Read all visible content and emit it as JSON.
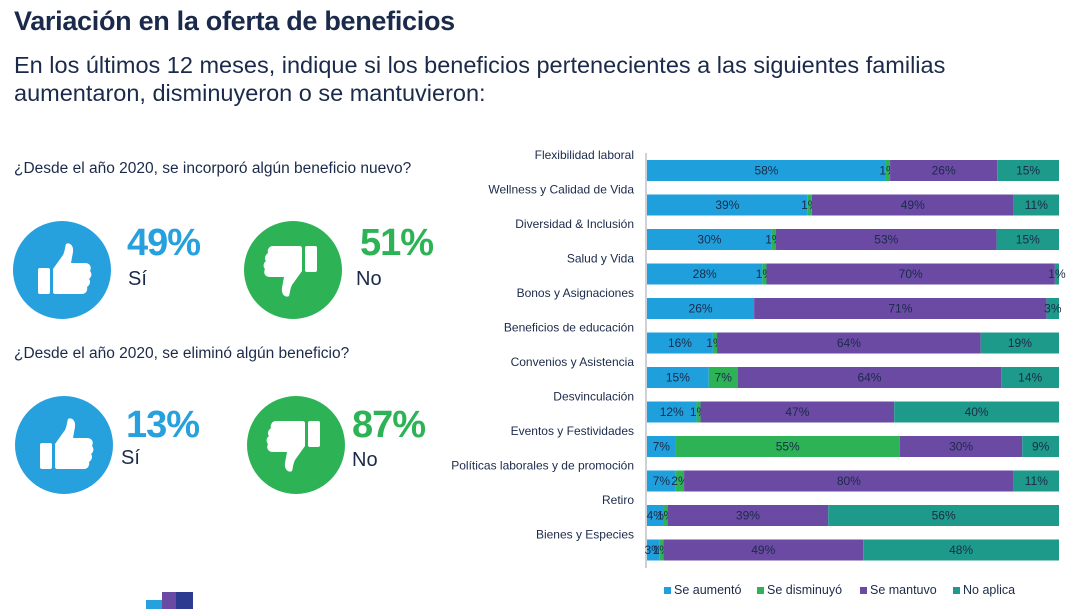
{
  "header": {
    "title": "Variación en la oferta de beneficios",
    "subtitle": "En los últimos 12 meses, indique si los beneficios pertenecientes a las siguientes familias aumentaron, disminuyeron o se mantuvieron:"
  },
  "questions": [
    {
      "text": "¿Desde el año 2020, se incorporó algún beneficio nuevo?",
      "yes": {
        "pct": "49%",
        "label": "Sí"
      },
      "no": {
        "pct": "51%",
        "label": "No"
      }
    },
    {
      "text": "¿Desde el año 2020, se eliminó algún beneficio?",
      "yes": {
        "pct": "13%",
        "label": "Sí"
      },
      "no": {
        "pct": "87%",
        "label": "No"
      }
    }
  ],
  "colors": {
    "blue": "#27a0de",
    "green": "#2db356",
    "navy": "#1b2a4a",
    "purple": "#6a4aa3",
    "teal": "#1e9a8a"
  },
  "icons": {
    "thumbs_up": "thumbs-up-icon",
    "thumbs_down": "thumbs-down-icon"
  },
  "chart_data": {
    "type": "bar",
    "orientation": "horizontal",
    "stacked": true,
    "unit": "%",
    "categories": [
      "Flexibilidad laboral",
      "Wellness y Calidad de Vida",
      "Diversidad & Inclusión",
      "Salud y Vida",
      "Bonos y Asignaciones",
      "Beneficios de educación",
      "Convenios y Asistencia",
      "Desvinculación",
      "Eventos y Festividades",
      "Políticas laborales y de promoción",
      "Retiro",
      "Bienes y Especies"
    ],
    "series": [
      {
        "name": "Se aumentó",
        "color": "#1fa0dc",
        "values": [
          58,
          39,
          30,
          28,
          26,
          16,
          15,
          12,
          7,
          7,
          4,
          3
        ]
      },
      {
        "name": "Se disminuyó",
        "color": "#2db356",
        "values": [
          1,
          1,
          1,
          1,
          0,
          1,
          7,
          1,
          55,
          2,
          1,
          1
        ]
      },
      {
        "name": "Se mantuvo",
        "color": "#6a4aa3",
        "values": [
          26,
          49,
          53,
          70,
          71,
          64,
          64,
          47,
          30,
          80,
          39,
          49
        ]
      },
      {
        "name": "No aplica",
        "color": "#1e9a8a",
        "values": [
          15,
          11,
          15,
          1,
          3,
          19,
          14,
          40,
          9,
          11,
          56,
          48
        ]
      }
    ],
    "labels": [
      [
        "58%",
        "1%",
        "26%",
        "15%"
      ],
      [
        "39%",
        "1%",
        "49%",
        "11%"
      ],
      [
        "30%",
        "1%",
        "53%",
        "15%"
      ],
      [
        "28%",
        "1%",
        "70%",
        "1%"
      ],
      [
        "26%",
        "",
        "71%",
        "3%"
      ],
      [
        "16%",
        "1%",
        "64%",
        "19%"
      ],
      [
        "15%",
        "7%",
        "64%",
        "14%"
      ],
      [
        "12%",
        "1%",
        "47%",
        "40%"
      ],
      [
        "7%",
        "55%",
        "30%",
        "9%"
      ],
      [
        "7%",
        "2%",
        "80%",
        "11%"
      ],
      [
        "4%",
        "1%",
        "39%",
        "56%"
      ],
      [
        "3%",
        "1%",
        "49%",
        "48%"
      ]
    ],
    "legend": [
      "Se aumentó",
      "Se disminuyó",
      "Se mantuvo",
      "No aplica"
    ],
    "legend_position": "bottom",
    "xlim": [
      0,
      100
    ]
  }
}
